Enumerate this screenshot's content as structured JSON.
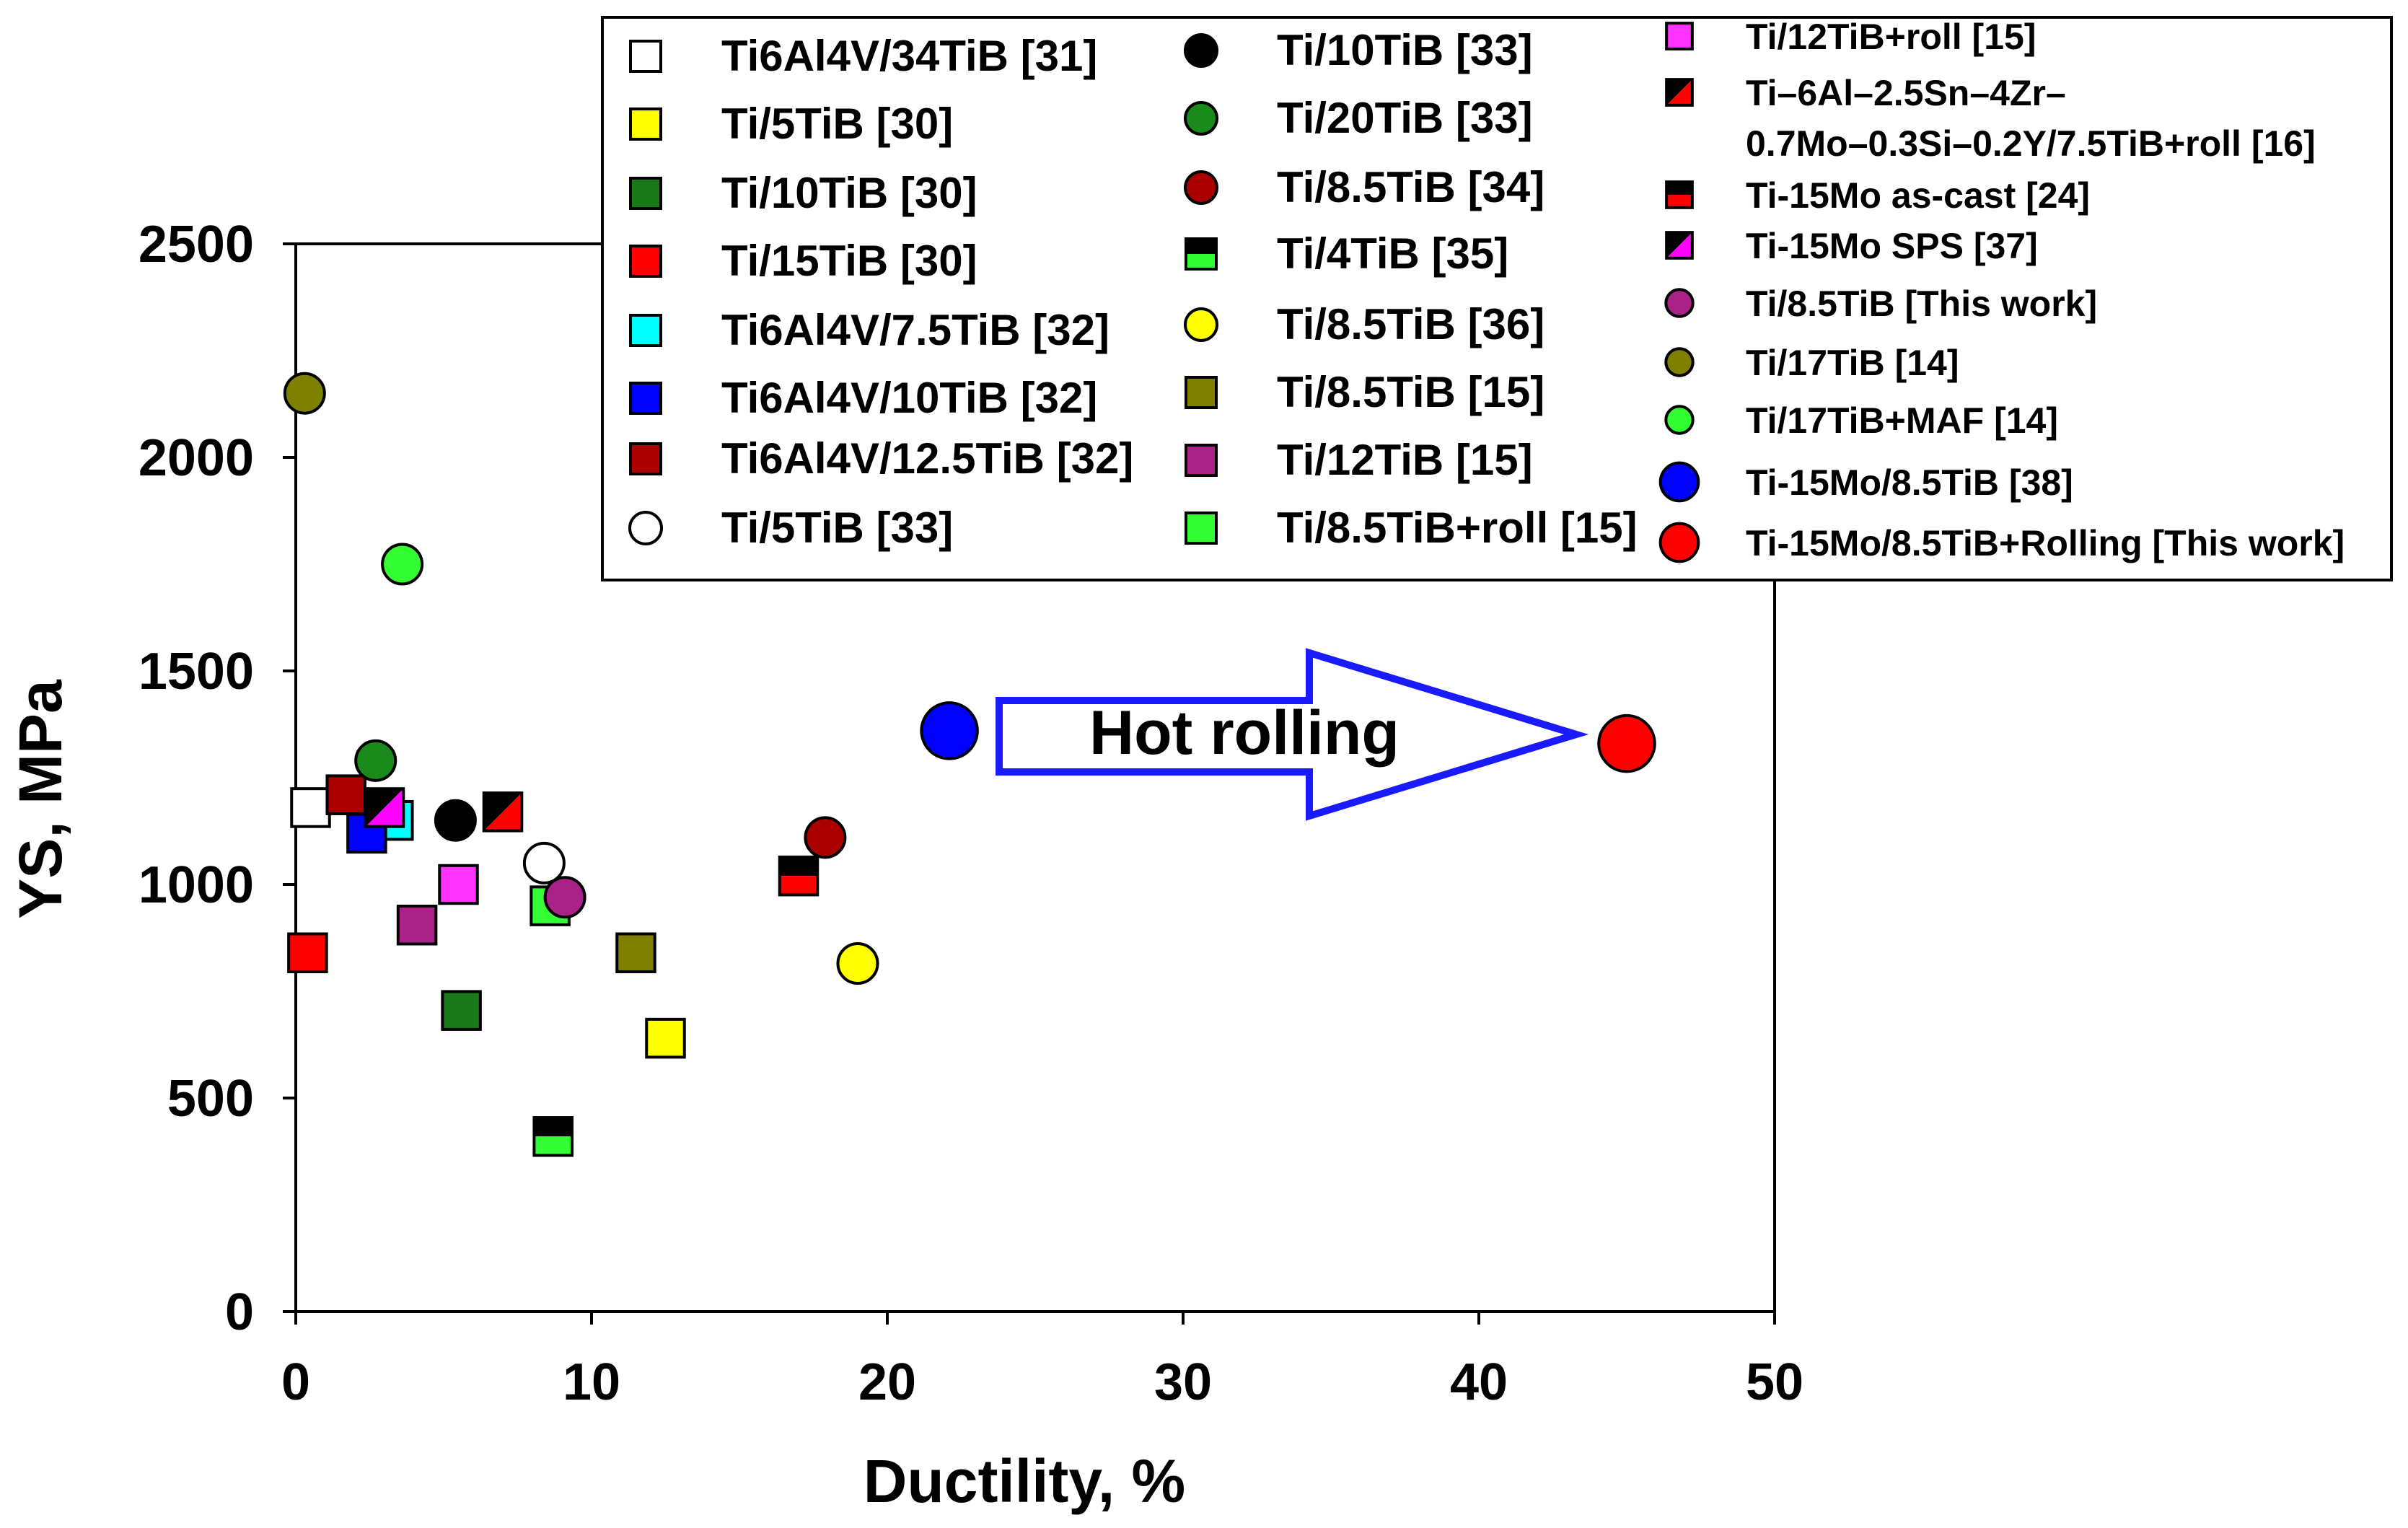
{
  "chart_data": {
    "type": "scatter",
    "title": "",
    "xlabel": "Ductility, %",
    "ylabel": "YS, MPa",
    "xlim": [
      0,
      50
    ],
    "ylim": [
      0,
      2500
    ],
    "xticks": [
      "0",
      "10",
      "20",
      "30",
      "40",
      "50"
    ],
    "yticks": [
      "0",
      "500",
      "1000",
      "1500",
      "2000",
      "2500"
    ],
    "annotation": "Hot rolling",
    "series": [
      {
        "name": "Ti6Al4V/34TiB [31]",
        "marker": "square",
        "color": "#ffffff",
        "points": [
          [
            0.5,
            1180
          ]
        ]
      },
      {
        "name": "Ti/5TiB [30]",
        "marker": "square",
        "color": "#ffff00",
        "points": [
          [
            12.5,
            640
          ]
        ]
      },
      {
        "name": "Ti/10TiB [30]",
        "marker": "square",
        "color": "#1a7a1a",
        "points": [
          [
            5.6,
            705
          ]
        ]
      },
      {
        "name": "Ti/15TiB [30]",
        "marker": "square",
        "color": "#ff0000",
        "points": [
          [
            0.4,
            840
          ]
        ]
      },
      {
        "name": "Ti6Al4V/7.5TiB [32]",
        "marker": "square",
        "color": "#00ffff",
        "points": [
          [
            3.3,
            1150
          ]
        ]
      },
      {
        "name": "Ti6Al4V/10TiB [32]",
        "marker": "square",
        "color": "#0000ff",
        "points": [
          [
            2.4,
            1120
          ]
        ]
      },
      {
        "name": "Ti6Al4V/12.5TiB [32]",
        "marker": "square",
        "color": "#aa0000",
        "points": [
          [
            1.7,
            1210
          ]
        ]
      },
      {
        "name": "Ti/5TiB [33]",
        "marker": "circle",
        "color": "#ffffff",
        "points": [
          [
            8.4,
            1050
          ]
        ]
      },
      {
        "name": "Ti/10TiB [33]",
        "marker": "circle",
        "color": "#000000",
        "points": [
          [
            5.4,
            1150
          ]
        ]
      },
      {
        "name": "Ti/20TiB [33]",
        "marker": "circle",
        "color": "#1a8a1a",
        "points": [
          [
            2.7,
            1290
          ]
        ]
      },
      {
        "name": "Ti/8.5TiB [34]",
        "marker": "circle",
        "color": "#aa0000",
        "points": [
          [
            17.9,
            1110
          ]
        ]
      },
      {
        "name": "Ti/4TiB [35]",
        "marker": "square-half-h",
        "color": "#000000",
        "color2": "#33ff33",
        "points": [
          [
            8.7,
            410
          ]
        ]
      },
      {
        "name": "Ti/8.5TiB [36]",
        "marker": "circle",
        "color": "#ffff00",
        "points": [
          [
            19.0,
            815
          ]
        ]
      },
      {
        "name": "Ti/8.5TiB [15]",
        "marker": "square",
        "color": "#808000",
        "points": [
          [
            11.5,
            840
          ]
        ]
      },
      {
        "name": "Ti/12TiB [15]",
        "marker": "square",
        "color": "#aa2288",
        "points": [
          [
            4.1,
            905
          ]
        ]
      },
      {
        "name": "Ti/8.5TiB+roll [15]",
        "marker": "square",
        "color": "#33ff33",
        "points": [
          [
            8.6,
            950
          ]
        ]
      },
      {
        "name": "Ti/12TiB+roll  [15]",
        "marker": "square",
        "color": "#ff33ff",
        "points": [
          [
            5.5,
            1000
          ]
        ]
      },
      {
        "name": "Ti–6Al–2.5Sn–4Zr–|0.7Mo–0.3Si–0.2Y/7.5TiB+roll [16]",
        "marker": "square-half-d",
        "color": "#000000",
        "color2": "#ff0000",
        "points": [
          [
            7.0,
            1170
          ]
        ]
      },
      {
        "name": "Ti-15Mo as-cast [24]",
        "marker": "square-half-h",
        "color": "#000000",
        "color2": "#ff0000",
        "points": [
          [
            17.0,
            1020
          ]
        ]
      },
      {
        "name": "Ti-15Mo SPS [37]",
        "marker": "square-half-d",
        "color": "#000000",
        "color2": "#ff00ff",
        "points": [
          [
            3.0,
            1180
          ]
        ]
      },
      {
        "name": "Ti/8.5TiB [This work]",
        "marker": "circle",
        "color": "#aa2288",
        "points": [
          [
            9.1,
            970
          ]
        ]
      },
      {
        "name": "Ti/17TiB [14]",
        "marker": "circle",
        "color": "#808000",
        "points": [
          [
            0.3,
            2150
          ]
        ]
      },
      {
        "name": "Ti/17TiB+MAF [14]",
        "marker": "circle",
        "color": "#33ff33",
        "points": [
          [
            3.6,
            1750
          ]
        ]
      },
      {
        "name": "Ti-15Mo/8.5TiB  [38]",
        "marker": "circle-large",
        "color": "#0000ff",
        "points": [
          [
            22.1,
            1360
          ]
        ]
      },
      {
        "name": "Ti-15Mo/8.5TiB+Rolling  [This work]",
        "marker": "circle-large",
        "color": "#ff0000",
        "points": [
          [
            45.0,
            1330
          ]
        ]
      }
    ]
  }
}
